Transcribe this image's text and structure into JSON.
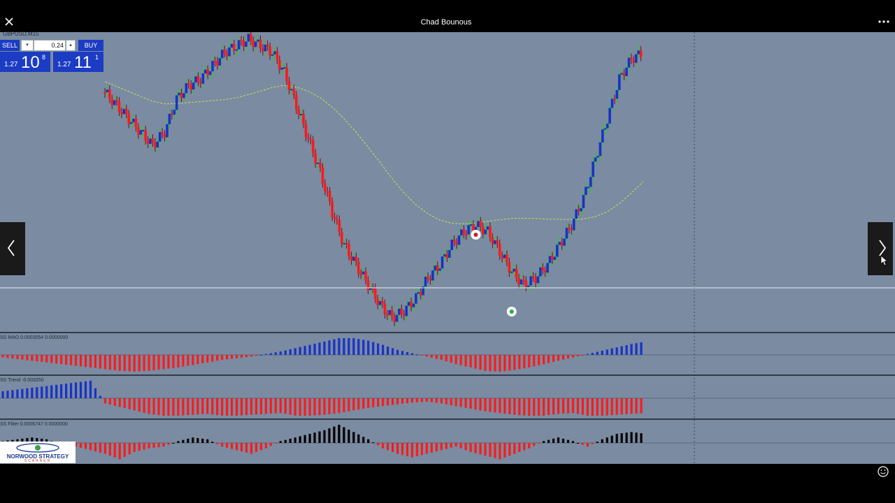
{
  "window": {
    "title": "Chad Bounous"
  },
  "colors": {
    "bg": "#7b8ba1",
    "bear": "#ff1a1a",
    "bull": "#1832c8",
    "wick_bear": "#7a0a10",
    "wick_bull": "#22d022",
    "ma": "#c8e05a",
    "hist_black": "#000000"
  },
  "symbol": "GBPUSD,M15",
  "trade_panel": {
    "sell_label": "SELL",
    "buy_label": "BUY",
    "lot": "0.24",
    "sell_small": "1.27",
    "sell_big": "10",
    "sell_sup": "8",
    "buy_small": "1.27",
    "buy_big": "11",
    "buy_sup": "1"
  },
  "indicators": [
    {
      "label": "SS MAO 0.0003054 0.0000000"
    },
    {
      "label": "SS Trend -0.003250"
    },
    {
      "label": "SS Filter 0.0006747 0.0000000"
    }
  ],
  "logo": {
    "line1": "NORWOOD STRATEGY",
    "line2": "SCANNER"
  },
  "icons": [
    "close-icon",
    "more-icon",
    "chevron-left-icon",
    "chevron-right-icon",
    "cursor-icon",
    "smiley-icon",
    "sell-signal-icon",
    "buy-signal-icon"
  ],
  "chart_data": {
    "type": "candlestick",
    "candles_close_profile": [
      0.6,
      0.5,
      0.4,
      0.3,
      0.2,
      0.3,
      0.55,
      0.65,
      0.7,
      0.8,
      0.9,
      0.95,
      1.0,
      0.95,
      0.9,
      0.75,
      0.5,
      0.25,
      0.0,
      -0.3,
      -0.55,
      -0.7,
      -0.85,
      -1.0,
      -1.1,
      -1.05,
      -0.95,
      -0.8,
      -0.7,
      -0.55,
      -0.45,
      -0.4,
      -0.45,
      -0.6,
      -0.75,
      -0.85,
      -0.8,
      -0.7,
      -0.55,
      -0.4,
      -0.2,
      0.1,
      0.4,
      0.7,
      0.85,
      0.9
    ],
    "histograms": {
      "mao": [
        -0.15,
        -0.25,
        -0.35,
        -0.45,
        -0.55,
        -0.65,
        -0.75,
        -0.85,
        -0.95,
        -1.0,
        -0.95,
        -0.85,
        -0.75,
        -0.6,
        -0.45,
        -0.3,
        -0.2,
        -0.1,
        0.05,
        0.2,
        0.4,
        0.6,
        0.8,
        1.0,
        1.0,
        0.85,
        0.6,
        0.3,
        0.1,
        -0.1,
        -0.3,
        -0.55,
        -0.75,
        -0.95,
        -1.0,
        -0.9,
        -0.75,
        -0.55,
        -0.35,
        -0.15,
        0.05,
        0.25,
        0.45,
        0.65,
        0.8
      ],
      "trend": [
        0.4,
        0.5,
        0.6,
        0.7,
        0.8,
        0.9,
        1.0,
        -0.3,
        -0.5,
        -0.7,
        -0.9,
        -1.0,
        -1.0,
        -0.95,
        -0.9,
        -1.0,
        -1.0,
        -0.95,
        -0.9,
        -0.85,
        -1.0,
        -1.0,
        -0.95,
        -0.85,
        -0.7,
        -0.55,
        -0.45,
        -0.35,
        -0.25,
        -0.2,
        -0.3,
        -0.45,
        -0.6,
        -0.75,
        -0.85,
        -0.95,
        -1.0,
        -1.0,
        -0.9,
        -0.85,
        -1.0,
        -1.0,
        -0.95,
        -0.9,
        -0.85
      ],
      "filter": [
        0.1,
        0.2,
        0.3,
        0.2,
        -0.1,
        -0.2,
        -0.4,
        -0.6,
        -0.9,
        -0.5,
        -0.3,
        -0.2,
        0.1,
        0.3,
        0.2,
        -0.2,
        -0.4,
        -0.6,
        -0.3,
        0.1,
        0.3,
        0.5,
        0.7,
        1.0,
        0.6,
        0.2,
        -0.3,
        -0.6,
        -0.8,
        -0.6,
        -0.4,
        -0.2,
        -0.5,
        -0.7,
        -0.9,
        -0.6,
        -0.3,
        0.1,
        0.3,
        0.1,
        -0.2,
        0.2,
        0.5,
        0.6,
        0.5
      ]
    },
    "signals": [
      {
        "type": "sell",
        "index": 31
      },
      {
        "type": "buy",
        "index": 34
      }
    ]
  }
}
